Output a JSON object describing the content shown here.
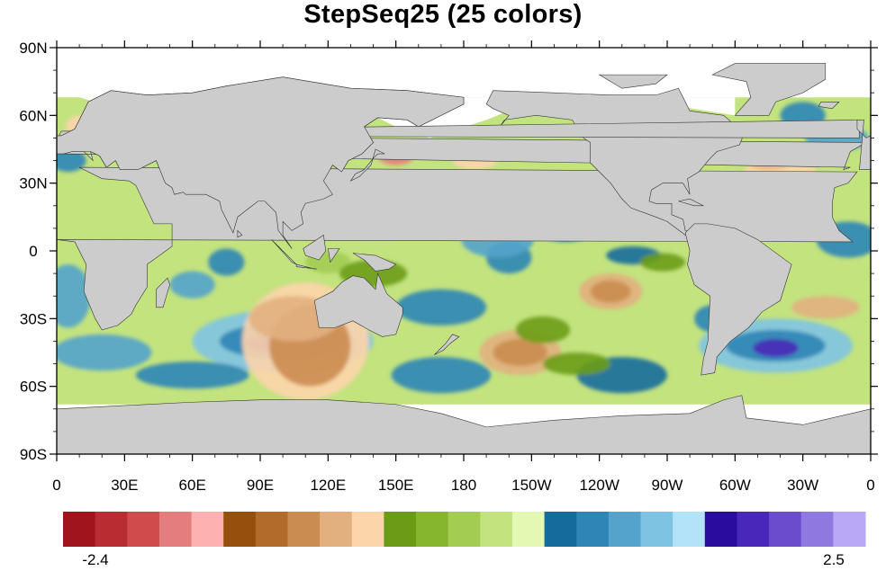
{
  "chart_data": {
    "type": "heatmap",
    "title": "StepSeq25 (25 colors)",
    "x_ticks": [
      "0",
      "30E",
      "60E",
      "90E",
      "120E",
      "150E",
      "180",
      "150W",
      "120W",
      "90W",
      "60W",
      "30W",
      "0"
    ],
    "y_ticks": [
      "90N",
      "60N",
      "30N",
      "0",
      "30S",
      "60S",
      "90S"
    ],
    "xlim": [
      0,
      360
    ],
    "ylim": [
      -90,
      90
    ],
    "colorbar": {
      "min_label": "-2.4",
      "max_label": "2.5",
      "colors": [
        "#a0141e",
        "#b92c31",
        "#d04b4b",
        "#e47e7e",
        "#fdb1b1",
        "#96500e",
        "#b26b2a",
        "#cb8c50",
        "#e2b07f",
        "#fdd5ab",
        "#6b9c15",
        "#85b62e",
        "#a3cc53",
        "#c3e37f",
        "#e3f8b2",
        "#156b9c",
        "#2e85b6",
        "#53a3cc",
        "#7fc3e3",
        "#b2e3f8",
        "#2a0d9c",
        "#4828b8",
        "#6a4dcc",
        "#8f78e0",
        "#b8a8f6"
      ]
    },
    "land_color": "#cccccc",
    "no_data_color": "#ffffff"
  }
}
